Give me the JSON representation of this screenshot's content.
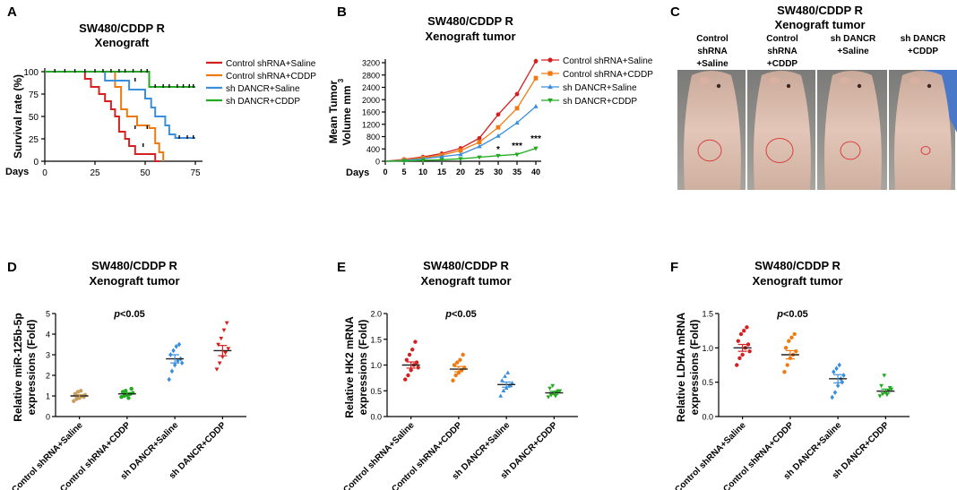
{
  "colors": {
    "red": "#d42020",
    "orange": "#f07a10",
    "blue": "#3a8fdc",
    "green": "#22aa22",
    "tan": "#c8a060",
    "gray": "#888888"
  },
  "chart_data": [
    {
      "panel": "A",
      "type": "line",
      "subtype": "kaplan-meier survival",
      "title": [
        "SW480/CDDP R",
        "Xenograft"
      ],
      "xlabel": "Days",
      "ylabel": "Survival rate (%)",
      "xlim": [
        0,
        75
      ],
      "ylim": [
        0,
        100
      ],
      "xticks": [
        "0",
        "25",
        "50",
        "75"
      ],
      "yticks": [
        "0",
        "25",
        "50",
        "75",
        "100"
      ],
      "legend": [
        "Control shRNA+Saline",
        "Control shRNA+CDDP",
        "sh DANCR+Saline",
        "sh DANCR+CDDP"
      ],
      "series": [
        {
          "name": "Control shRNA+Saline",
          "color": "red",
          "steps": [
            [
              0,
              100
            ],
            [
              20,
              100
            ],
            [
              20,
              92
            ],
            [
              23,
              92
            ],
            [
              23,
              83
            ],
            [
              27,
              83
            ],
            [
              27,
              75
            ],
            [
              30,
              75
            ],
            [
              30,
              67
            ],
            [
              33,
              67
            ],
            [
              33,
              58
            ],
            [
              35,
              58
            ],
            [
              35,
              50
            ],
            [
              37,
              50
            ],
            [
              37,
              33
            ],
            [
              40,
              33
            ],
            [
              40,
              25
            ],
            [
              42,
              25
            ],
            [
              42,
              17
            ],
            [
              45,
              17
            ],
            [
              45,
              8
            ],
            [
              55,
              8
            ],
            [
              55,
              0
            ],
            [
              57,
              0
            ]
          ],
          "censor": [
            [
              49,
              17
            ]
          ]
        },
        {
          "name": "Control shRNA+CDDP",
          "color": "orange",
          "steps": [
            [
              0,
              100
            ],
            [
              35,
              100
            ],
            [
              35,
              83
            ],
            [
              38,
              83
            ],
            [
              38,
              58
            ],
            [
              41,
              58
            ],
            [
              41,
              50
            ],
            [
              46,
              50
            ],
            [
              46,
              40
            ],
            [
              52,
              40
            ],
            [
              52,
              37
            ],
            [
              55,
              37
            ],
            [
              55,
              20
            ],
            [
              57,
              20
            ],
            [
              57,
              10
            ],
            [
              59,
              10
            ],
            [
              59,
              0
            ]
          ],
          "censor": [
            [
              45,
              37
            ],
            [
              51,
              37
            ]
          ]
        },
        {
          "name": "sh DANCR+Saline",
          "color": "blue",
          "steps": [
            [
              0,
              100
            ],
            [
              30,
              100
            ],
            [
              30,
              90
            ],
            [
              42,
              90
            ],
            [
              42,
              80
            ],
            [
              50,
              80
            ],
            [
              50,
              70
            ],
            [
              53,
              70
            ],
            [
              53,
              60
            ],
            [
              55,
              60
            ],
            [
              55,
              50
            ],
            [
              60,
              50
            ],
            [
              60,
              40
            ],
            [
              62,
              40
            ],
            [
              62,
              30
            ],
            [
              65,
              30
            ],
            [
              65,
              26
            ],
            [
              75,
              26
            ]
          ],
          "censor": [
            [
              45,
              90
            ],
            [
              67,
              26
            ],
            [
              71,
              26
            ],
            [
              74,
              26
            ]
          ]
        },
        {
          "name": "sh DANCR+CDDP",
          "color": "green",
          "steps": [
            [
              0,
              100
            ],
            [
              52,
              100
            ],
            [
              52,
              83
            ],
            [
              75,
              83
            ]
          ],
          "censor": [
            [
              5,
              100
            ],
            [
              10,
              100
            ],
            [
              15,
              100
            ],
            [
              20,
              100
            ],
            [
              25,
              100
            ],
            [
              29,
              100
            ],
            [
              33,
              100
            ],
            [
              37,
              100
            ],
            [
              40,
              100
            ],
            [
              44,
              100
            ],
            [
              48,
              100
            ],
            [
              51,
              100
            ],
            [
              55,
              83
            ],
            [
              59,
              83
            ],
            [
              62,
              83
            ],
            [
              66,
              83
            ],
            [
              69,
              83
            ],
            [
              72,
              83
            ],
            [
              74,
              83
            ]
          ]
        }
      ]
    },
    {
      "panel": "B",
      "type": "line",
      "title": [
        "SW480/CDDP R",
        "Xenograft tumor"
      ],
      "xlabel": "Days",
      "ylabel": [
        "Mean Tumor",
        "Volume mm"
      ],
      "ylabel_superscript": "3",
      "x": [
        5,
        10,
        15,
        20,
        25,
        30,
        35,
        40
      ],
      "xlim": [
        0,
        40
      ],
      "ylim": [
        0,
        3200
      ],
      "xticks": [
        "0",
        "5",
        "10",
        "15",
        "20",
        "25",
        "30",
        "35",
        "40"
      ],
      "yticks": [
        "0",
        "400",
        "800",
        "1200",
        "1600",
        "2000",
        "2400",
        "2800",
        "3200"
      ],
      "legend": [
        "Control shRNA+Saline",
        "Control shRNA+CDDP",
        "sh DANCR+Saline",
        "sh DANCR+CDDP"
      ],
      "series": [
        {
          "name": "Control shRNA+Saline",
          "color": "red",
          "marker": "circle",
          "values": [
            60,
            140,
            250,
            420,
            750,
            1520,
            2180,
            3250
          ],
          "err": [
            10,
            15,
            20,
            30,
            40,
            50,
            60,
            80
          ]
        },
        {
          "name": "Control shRNA+CDDP",
          "color": "orange",
          "marker": "square",
          "values": [
            50,
            110,
            200,
            350,
            620,
            1100,
            1720,
            2700
          ],
          "err": [
            10,
            15,
            20,
            30,
            40,
            50,
            60,
            80
          ]
        },
        {
          "name": "sh DANCR+Saline",
          "color": "blue",
          "marker": "triangle",
          "values": [
            30,
            80,
            150,
            220,
            480,
            820,
            1250,
            1780
          ],
          "err": [
            10,
            12,
            15,
            20,
            30,
            40,
            50,
            60
          ]
        },
        {
          "name": "sh DANCR+CDDP",
          "color": "green",
          "marker": "triangle-down",
          "values": [
            10,
            30,
            50,
            80,
            130,
            180,
            220,
            420
          ],
          "err": [
            5,
            5,
            5,
            5,
            10,
            10,
            15,
            20
          ]
        }
      ],
      "annotations": [
        {
          "x": 30,
          "text": "*"
        },
        {
          "x": 35,
          "text": "***"
        },
        {
          "x": 40,
          "text": "***"
        }
      ]
    },
    {
      "panel": "D",
      "type": "scatter",
      "subtype": "dot plot with mean and SEM",
      "title": [
        "SW480/CDDP R",
        "Xenograft tumor"
      ],
      "ylabel": [
        "Relative miR-125b-5p",
        "expressions (Fold)"
      ],
      "annotation": "p<0.05",
      "categories": [
        "Control shRNA+Saline",
        "Control shRNA+CDDP",
        "sh DANCR+Saline",
        "sh DANCR+CDDP"
      ],
      "ylim": [
        0,
        5
      ],
      "yticks": [
        "0",
        "1",
        "2",
        "3",
        "4",
        "5"
      ],
      "groups": [
        {
          "color": "tan",
          "marker": "circle",
          "mean": 1.0,
          "sem": 0.06,
          "points": [
            0.75,
            0.85,
            0.9,
            1.0,
            1.05,
            1.1,
            1.2,
            1.25,
            0.95
          ]
        },
        {
          "color": "green",
          "marker": "circle",
          "mean": 1.1,
          "sem": 0.06,
          "points": [
            0.95,
            1.0,
            1.05,
            1.1,
            1.15,
            1.2,
            1.25,
            0.9,
            1.35
          ]
        },
        {
          "color": "blue",
          "marker": "diamond",
          "mean": 2.8,
          "sem": 0.2,
          "points": [
            1.8,
            2.2,
            2.5,
            2.7,
            2.8,
            3.0,
            3.2,
            3.4,
            3.5,
            2.6
          ]
        },
        {
          "color": "red",
          "marker": "triangle-down",
          "mean": 3.2,
          "sem": 0.25,
          "points": [
            2.3,
            2.6,
            2.9,
            3.1,
            3.3,
            3.5,
            3.8,
            4.2,
            4.55
          ]
        }
      ]
    },
    {
      "panel": "E",
      "type": "scatter",
      "subtype": "dot plot with mean and SEM",
      "title": [
        "SW480/CDDP R",
        "Xenograft tumor"
      ],
      "ylabel": [
        "Relative HK2 mRNA",
        "expressions (Fold)"
      ],
      "annotation": "p<0.05",
      "categories": [
        "Control shRNA+Saline",
        "Control shRNA+CDDP",
        "sh DANCR+Saline",
        "sh DANCR+CDDP"
      ],
      "ylim": [
        0,
        2.0
      ],
      "yticks": [
        "0.0",
        "0.5",
        "1.0",
        "1.5",
        "2.0"
      ],
      "groups": [
        {
          "color": "red",
          "marker": "circle",
          "mean": 1.0,
          "sem": 0.06,
          "points": [
            0.72,
            0.8,
            0.9,
            1.0,
            1.05,
            1.1,
            1.2,
            1.3,
            1.45,
            0.95
          ]
        },
        {
          "color": "orange",
          "marker": "circle",
          "mean": 0.92,
          "sem": 0.05,
          "points": [
            0.7,
            0.8,
            0.85,
            0.9,
            0.95,
            1.0,
            1.05,
            1.1,
            1.2
          ]
        },
        {
          "color": "blue",
          "marker": "triangle",
          "mean": 0.62,
          "sem": 0.05,
          "points": [
            0.4,
            0.5,
            0.55,
            0.6,
            0.65,
            0.7,
            0.78,
            0.85,
            0.6
          ]
        },
        {
          "color": "green",
          "marker": "triangle-down",
          "mean": 0.46,
          "sem": 0.03,
          "points": [
            0.38,
            0.42,
            0.45,
            0.48,
            0.5,
            0.55,
            0.6,
            0.4,
            0.5
          ]
        }
      ]
    },
    {
      "panel": "F",
      "type": "scatter",
      "subtype": "dot plot with mean and SEM",
      "title": [
        "SW480/CDDP R",
        "Xenograft tumor"
      ],
      "ylabel": [
        "Relative LDHA mRNA",
        "expressions (Fold)"
      ],
      "annotation": "p<0.05",
      "categories": [
        "Control shRNA+Saline",
        "Control shRNA+CDDP",
        "sh DANCR+Saline",
        "sh DANCR+CDDP"
      ],
      "ylim": [
        0,
        1.5
      ],
      "yticks": [
        "0.0",
        "0.5",
        "1.0",
        "1.5"
      ],
      "groups": [
        {
          "color": "red",
          "marker": "circle",
          "mean": 1.0,
          "sem": 0.05,
          "points": [
            0.75,
            0.85,
            0.9,
            1.0,
            1.05,
            1.1,
            1.2,
            1.25,
            1.3,
            0.95
          ]
        },
        {
          "color": "orange",
          "marker": "circle",
          "mean": 0.9,
          "sem": 0.06,
          "points": [
            0.65,
            0.75,
            0.85,
            0.9,
            0.95,
            1.0,
            1.1,
            1.15,
            1.2
          ]
        },
        {
          "color": "blue",
          "marker": "diamond",
          "mean": 0.55,
          "sem": 0.06,
          "points": [
            0.28,
            0.35,
            0.45,
            0.55,
            0.6,
            0.65,
            0.7,
            0.75,
            0.5
          ]
        },
        {
          "color": "green",
          "marker": "triangle-down",
          "mean": 0.37,
          "sem": 0.03,
          "points": [
            0.3,
            0.33,
            0.35,
            0.38,
            0.4,
            0.45,
            0.6,
            0.32,
            0.42
          ]
        }
      ]
    }
  ],
  "panel_c": {
    "title": [
      "SW480/CDDP R",
      "Xenograft tumor"
    ],
    "columns": [
      [
        "Control",
        "shRNA",
        "+Saline"
      ],
      [
        "Control",
        "shRNA",
        "+CDDP"
      ],
      [
        "sh DANCR",
        "+Saline"
      ],
      [
        "sh DANCR",
        "+CDDP"
      ]
    ]
  },
  "panel_letters": [
    "A",
    "B",
    "C",
    "D",
    "E",
    "F"
  ]
}
